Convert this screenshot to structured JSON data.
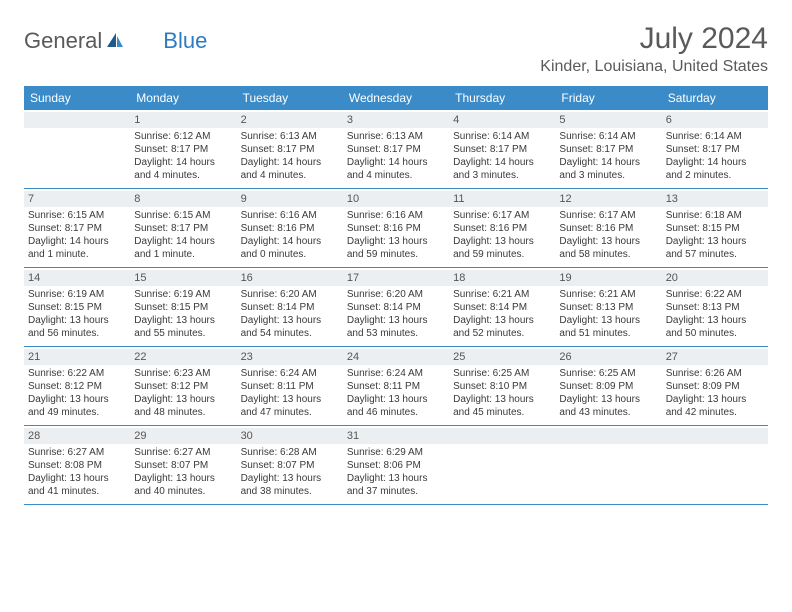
{
  "logo": {
    "text1": "General",
    "text2": "Blue"
  },
  "title": "July 2024",
  "location": "Kinder, Louisiana, United States",
  "colors": {
    "header_bg": "#3b8bc8",
    "header_text": "#ffffff",
    "daynum_bg": "#eceff1",
    "border": "#3b8bc8",
    "logo_gray": "#5a5a5a",
    "logo_blue": "#2d7cc1"
  },
  "dayNames": [
    "Sunday",
    "Monday",
    "Tuesday",
    "Wednesday",
    "Thursday",
    "Friday",
    "Saturday"
  ],
  "labels": {
    "sunrise": "Sunrise:",
    "sunset": "Sunset:",
    "daylight": "Daylight:"
  },
  "weeks": [
    [
      {
        "day": "",
        "empty": true
      },
      {
        "day": "1",
        "sunrise": "6:12 AM",
        "sunset": "8:17 PM",
        "daylight1": "14 hours",
        "daylight2": "and 4 minutes."
      },
      {
        "day": "2",
        "sunrise": "6:13 AM",
        "sunset": "8:17 PM",
        "daylight1": "14 hours",
        "daylight2": "and 4 minutes."
      },
      {
        "day": "3",
        "sunrise": "6:13 AM",
        "sunset": "8:17 PM",
        "daylight1": "14 hours",
        "daylight2": "and 4 minutes."
      },
      {
        "day": "4",
        "sunrise": "6:14 AM",
        "sunset": "8:17 PM",
        "daylight1": "14 hours",
        "daylight2": "and 3 minutes."
      },
      {
        "day": "5",
        "sunrise": "6:14 AM",
        "sunset": "8:17 PM",
        "daylight1": "14 hours",
        "daylight2": "and 3 minutes."
      },
      {
        "day": "6",
        "sunrise": "6:14 AM",
        "sunset": "8:17 PM",
        "daylight1": "14 hours",
        "daylight2": "and 2 minutes."
      }
    ],
    [
      {
        "day": "7",
        "sunrise": "6:15 AM",
        "sunset": "8:17 PM",
        "daylight1": "14 hours",
        "daylight2": "and 1 minute."
      },
      {
        "day": "8",
        "sunrise": "6:15 AM",
        "sunset": "8:17 PM",
        "daylight1": "14 hours",
        "daylight2": "and 1 minute."
      },
      {
        "day": "9",
        "sunrise": "6:16 AM",
        "sunset": "8:16 PM",
        "daylight1": "14 hours",
        "daylight2": "and 0 minutes."
      },
      {
        "day": "10",
        "sunrise": "6:16 AM",
        "sunset": "8:16 PM",
        "daylight1": "13 hours",
        "daylight2": "and 59 minutes."
      },
      {
        "day": "11",
        "sunrise": "6:17 AM",
        "sunset": "8:16 PM",
        "daylight1": "13 hours",
        "daylight2": "and 59 minutes."
      },
      {
        "day": "12",
        "sunrise": "6:17 AM",
        "sunset": "8:16 PM",
        "daylight1": "13 hours",
        "daylight2": "and 58 minutes."
      },
      {
        "day": "13",
        "sunrise": "6:18 AM",
        "sunset": "8:15 PM",
        "daylight1": "13 hours",
        "daylight2": "and 57 minutes."
      }
    ],
    [
      {
        "day": "14",
        "sunrise": "6:19 AM",
        "sunset": "8:15 PM",
        "daylight1": "13 hours",
        "daylight2": "and 56 minutes."
      },
      {
        "day": "15",
        "sunrise": "6:19 AM",
        "sunset": "8:15 PM",
        "daylight1": "13 hours",
        "daylight2": "and 55 minutes."
      },
      {
        "day": "16",
        "sunrise": "6:20 AM",
        "sunset": "8:14 PM",
        "daylight1": "13 hours",
        "daylight2": "and 54 minutes."
      },
      {
        "day": "17",
        "sunrise": "6:20 AM",
        "sunset": "8:14 PM",
        "daylight1": "13 hours",
        "daylight2": "and 53 minutes."
      },
      {
        "day": "18",
        "sunrise": "6:21 AM",
        "sunset": "8:14 PM",
        "daylight1": "13 hours",
        "daylight2": "and 52 minutes."
      },
      {
        "day": "19",
        "sunrise": "6:21 AM",
        "sunset": "8:13 PM",
        "daylight1": "13 hours",
        "daylight2": "and 51 minutes."
      },
      {
        "day": "20",
        "sunrise": "6:22 AM",
        "sunset": "8:13 PM",
        "daylight1": "13 hours",
        "daylight2": "and 50 minutes."
      }
    ],
    [
      {
        "day": "21",
        "sunrise": "6:22 AM",
        "sunset": "8:12 PM",
        "daylight1": "13 hours",
        "daylight2": "and 49 minutes."
      },
      {
        "day": "22",
        "sunrise": "6:23 AM",
        "sunset": "8:12 PM",
        "daylight1": "13 hours",
        "daylight2": "and 48 minutes."
      },
      {
        "day": "23",
        "sunrise": "6:24 AM",
        "sunset": "8:11 PM",
        "daylight1": "13 hours",
        "daylight2": "and 47 minutes."
      },
      {
        "day": "24",
        "sunrise": "6:24 AM",
        "sunset": "8:11 PM",
        "daylight1": "13 hours",
        "daylight2": "and 46 minutes."
      },
      {
        "day": "25",
        "sunrise": "6:25 AM",
        "sunset": "8:10 PM",
        "daylight1": "13 hours",
        "daylight2": "and 45 minutes."
      },
      {
        "day": "26",
        "sunrise": "6:25 AM",
        "sunset": "8:09 PM",
        "daylight1": "13 hours",
        "daylight2": "and 43 minutes."
      },
      {
        "day": "27",
        "sunrise": "6:26 AM",
        "sunset": "8:09 PM",
        "daylight1": "13 hours",
        "daylight2": "and 42 minutes."
      }
    ],
    [
      {
        "day": "28",
        "sunrise": "6:27 AM",
        "sunset": "8:08 PM",
        "daylight1": "13 hours",
        "daylight2": "and 41 minutes."
      },
      {
        "day": "29",
        "sunrise": "6:27 AM",
        "sunset": "8:07 PM",
        "daylight1": "13 hours",
        "daylight2": "and 40 minutes."
      },
      {
        "day": "30",
        "sunrise": "6:28 AM",
        "sunset": "8:07 PM",
        "daylight1": "13 hours",
        "daylight2": "and 38 minutes."
      },
      {
        "day": "31",
        "sunrise": "6:29 AM",
        "sunset": "8:06 PM",
        "daylight1": "13 hours",
        "daylight2": "and 37 minutes."
      },
      {
        "day": "",
        "empty": true
      },
      {
        "day": "",
        "empty": true
      },
      {
        "day": "",
        "empty": true
      }
    ]
  ]
}
